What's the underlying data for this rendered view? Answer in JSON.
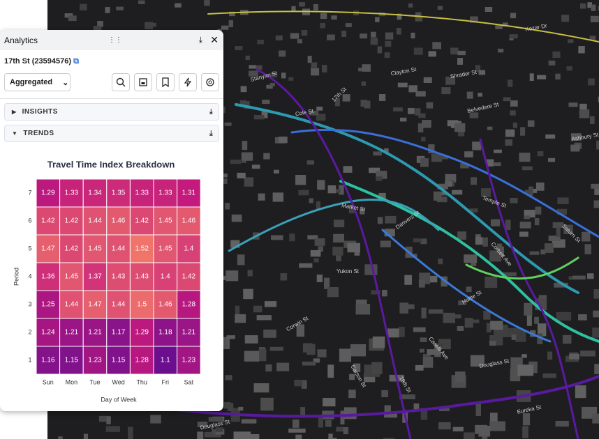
{
  "panel": {
    "title": "Analytics",
    "segment": "17th St (23594576)",
    "dropdown": "Aggregated",
    "sections": [
      "INSIGHTS",
      "TRENDS"
    ]
  },
  "map": {
    "labels": [
      "Kezar Dr",
      "Stanyan St",
      "Clayton St",
      "Shrader St",
      "Cole St",
      "17th St",
      "Belvedere St",
      "Ashbury St",
      "Market St",
      "Danvers St",
      "Temple St",
      "Corbett Ave",
      "Saturn St",
      "Yukon St",
      "Hattie St",
      "Corwin St",
      "Caselli Ave",
      "Douglass St",
      "Carson St",
      "19th St",
      "Eureka St",
      "Douglass St"
    ]
  },
  "chart_data": {
    "type": "heatmap",
    "title": "Travel Time Index Breakdown",
    "x_label": "Day of Week",
    "y_label": "Period",
    "categories": [
      "Sun",
      "Mon",
      "Tue",
      "Wed",
      "Thu",
      "Fri",
      "Sat"
    ],
    "y": [
      1,
      2,
      3,
      4,
      5,
      6,
      7
    ],
    "values": [
      [
        1.16,
        1.15,
        1.23,
        1.15,
        1.28,
        1.1,
        1.23
      ],
      [
        1.24,
        1.21,
        1.21,
        1.17,
        1.29,
        1.18,
        1.21
      ],
      [
        1.25,
        1.44,
        1.47,
        1.44,
        1.5,
        1.46,
        1.28
      ],
      [
        1.36,
        1.45,
        1.37,
        1.43,
        1.43,
        1.4,
        1.42
      ],
      [
        1.47,
        1.42,
        1.45,
        1.44,
        1.52,
        1.45,
        1.4
      ],
      [
        1.42,
        1.42,
        1.44,
        1.46,
        1.42,
        1.45,
        1.46
      ],
      [
        1.29,
        1.33,
        1.34,
        1.35,
        1.33,
        1.33,
        1.31
      ]
    ],
    "colorscale": [
      "#6b0f8f",
      "#c41a7d",
      "#f0746a"
    ]
  }
}
